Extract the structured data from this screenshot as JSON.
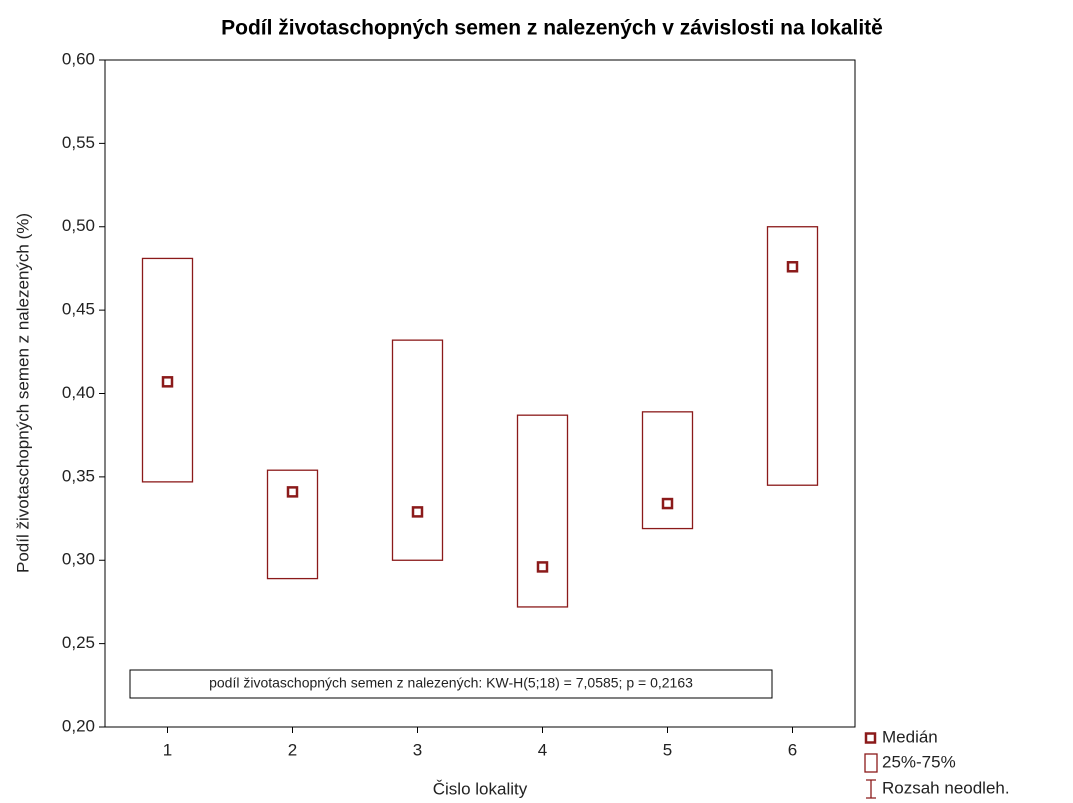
{
  "chart_data": {
    "type": "box",
    "title": "Podíl životaschopných semen z nalezených v závislosti na lokalitě",
    "xlabel": "Čislo lokality",
    "ylabel": "Podíl životaschopných semen z nalezených (%)",
    "annotation": "podíl životaschopných semen z nalezených: KW-H(5;18) = 7,0585; p = 0,2163",
    "categories": [
      "1",
      "2",
      "3",
      "4",
      "5",
      "6"
    ],
    "median": [
      0.407,
      0.341,
      0.329,
      0.296,
      0.334,
      0.476
    ],
    "q1": [
      0.347,
      0.289,
      0.3,
      0.272,
      0.319,
      0.345
    ],
    "q3": [
      0.481,
      0.354,
      0.432,
      0.387,
      0.389,
      0.5
    ],
    "color": "#8b1a1a",
    "legend": [
      "Medián",
      "25%-75%",
      "Rozsah neodleh."
    ],
    "ylim": [
      0.2,
      0.6
    ],
    "yticks": [
      {
        "value": 0.2,
        "label": "0,20"
      },
      {
        "value": 0.25,
        "label": "0,25"
      },
      {
        "value": 0.3,
        "label": "0,30"
      },
      {
        "value": 0.35,
        "label": "0,35"
      },
      {
        "value": 0.4,
        "label": "0,40"
      },
      {
        "value": 0.45,
        "label": "0,45"
      },
      {
        "value": 0.5,
        "label": "0,50"
      },
      {
        "value": 0.55,
        "label": "0,55"
      },
      {
        "value": 0.6,
        "label": "0,60"
      }
    ]
  }
}
